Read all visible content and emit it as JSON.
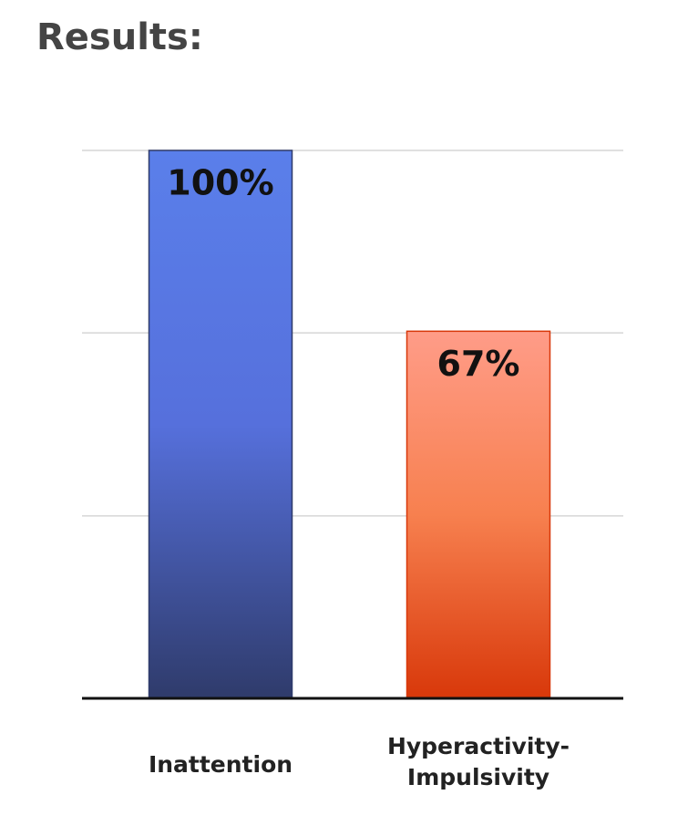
{
  "title": "Results:",
  "chart_data": {
    "type": "bar",
    "categories": [
      "Inattention",
      "Hyperactivity-Impulsivity"
    ],
    "values": [
      100,
      67
    ],
    "value_labels": [
      "100%",
      "67%"
    ],
    "gradients": [
      [
        "#5a7fea",
        "#5670dc",
        "#2f3b6b"
      ],
      [
        "#ff9c88",
        "#f7804f",
        "#d8380a"
      ]
    ],
    "ylim": [
      0,
      100
    ],
    "yticks": [
      0,
      33.3,
      66.7,
      100
    ],
    "grid": true
  }
}
